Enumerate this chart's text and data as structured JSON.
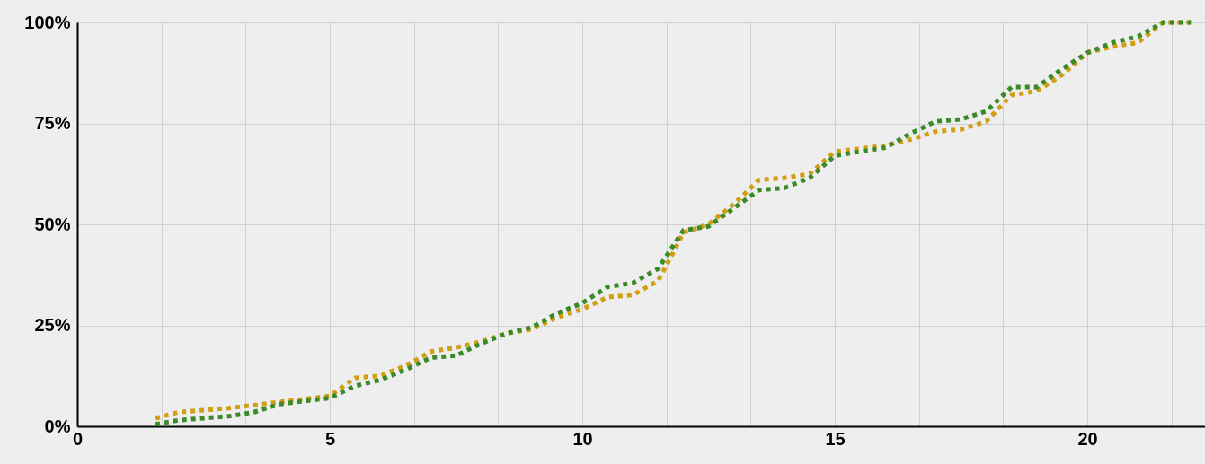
{
  "chart_data": {
    "type": "line",
    "line_style": "dotted",
    "marker": "none",
    "grid": true,
    "xlim": [
      0,
      22.33
    ],
    "xticks": [
      0,
      {
        "value": 1.667,
        "label": null
      },
      {
        "value": 3.333,
        "label": null
      },
      5,
      {
        "value": 6.667,
        "label": null
      },
      {
        "value": 8.333,
        "label": null
      },
      10,
      {
        "value": 11.667,
        "label": null
      },
      {
        "value": 13.333,
        "label": null
      },
      15,
      {
        "value": 16.667,
        "label": null
      },
      {
        "value": 18.333,
        "label": null
      },
      20,
      {
        "value": 21.667,
        "label": null
      }
    ],
    "ylim": [
      0,
      100
    ],
    "yticks": [
      {
        "value": 0,
        "label": "0%"
      },
      {
        "value": 25,
        "label": "25%"
      },
      {
        "value": 50,
        "label": "50%"
      },
      {
        "value": 75,
        "label": "75%"
      },
      {
        "value": 100,
        "label": "100%"
      }
    ],
    "series": [
      {
        "color": "#d29e12",
        "x": [
          1.55,
          2,
          3,
          4,
          5,
          5.5,
          6,
          6.5,
          7,
          7.5,
          8,
          8.5,
          9,
          9.5,
          10,
          10.5,
          11,
          11.5,
          11.8,
          12,
          12.5,
          13,
          13.5,
          14,
          14.5,
          15,
          16,
          16.5,
          17,
          17.5,
          18,
          18.5,
          19,
          19.5,
          20,
          20.5,
          21,
          21.5,
          22.05
        ],
        "values": [
          2,
          3.5,
          4.5,
          6,
          7.5,
          12,
          12.5,
          15,
          18.5,
          19.5,
          21,
          23,
          24,
          27,
          29,
          32,
          32.5,
          36,
          43,
          48,
          50,
          55,
          61,
          61.5,
          62.5,
          68,
          69.5,
          71,
          73,
          73.5,
          75.5,
          82,
          83,
          87,
          92.5,
          94,
          95,
          100,
          100
        ]
      },
      {
        "color": "#3a8a2a",
        "x": [
          1.55,
          2,
          3,
          3.5,
          4,
          5,
          5.5,
          6,
          6.5,
          7,
          7.5,
          8,
          8.5,
          9,
          9.5,
          10,
          10.5,
          11,
          11.5,
          12,
          12.5,
          13,
          13.5,
          14,
          14.5,
          15,
          16,
          16.5,
          17,
          17.5,
          18,
          18.5,
          19,
          19.5,
          20,
          20.5,
          21,
          21.5,
          22.05
        ],
        "values": [
          0.5,
          1.5,
          2.5,
          3.5,
          5.5,
          7,
          10,
          11.5,
          14,
          17,
          17.5,
          20.5,
          23,
          24.5,
          28,
          30.5,
          34.5,
          35.5,
          39,
          48.5,
          49.5,
          54,
          58.5,
          59,
          61.5,
          67,
          69,
          72.5,
          75.5,
          76,
          78,
          84,
          84,
          88.5,
          92.5,
          95,
          96.5,
          100,
          100
        ]
      }
    ]
  }
}
